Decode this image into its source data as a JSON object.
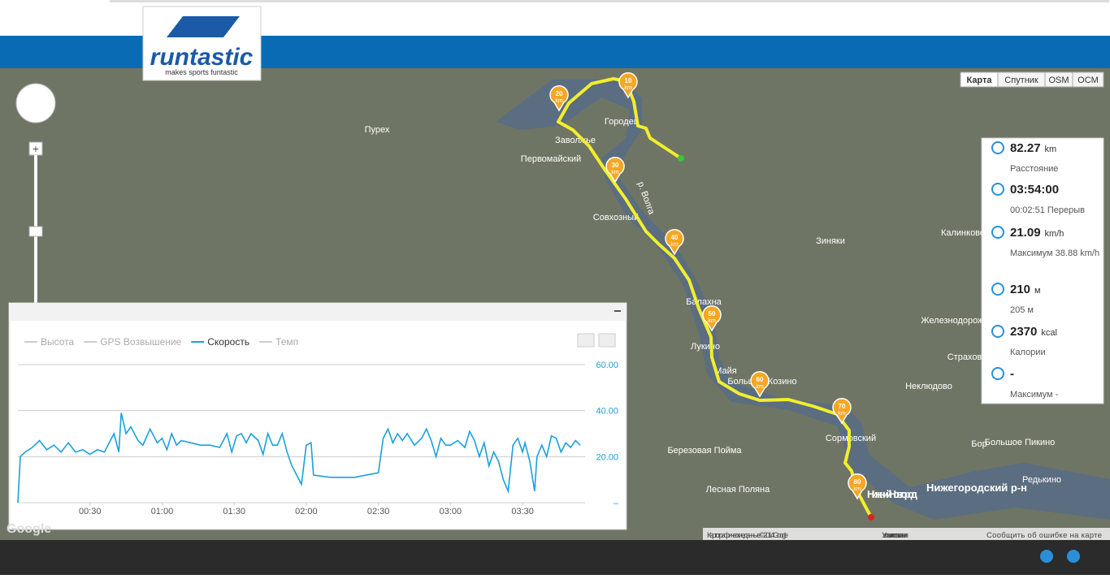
{
  "header": {
    "logo": "runtastic",
    "slogan": "makes sports funtastic"
  },
  "map": {
    "map_types": [
      "Карта",
      "Спутник",
      "OSM",
      "OCM"
    ],
    "labels": [
      "Пурех",
      "Городец",
      "Заволжье",
      "Первомайский",
      "Совхозный",
      "Зиняки",
      "Калинково",
      "Балахна",
      "Лукино",
      "Майя",
      "Большое Козино",
      "Неклюдово",
      "Железнодорожный",
      "Страхово",
      "Сормовский",
      "Бор",
      "Большое Пикино",
      "Березовая Пойма",
      "Лесная Поляна",
      "Нижний Новгород",
      "Нижегородский р-н",
      "Редькино",
      "р. Волга"
    ],
    "km_markers": [
      "10",
      "20",
      "30",
      "40",
      "50",
      "60",
      "70",
      "80"
    ],
    "km_unit": "km",
    "google": "Google",
    "footer": [
      "Картографические данные © 2014 Google",
      "Условия использования",
      "Сообщить об ошибке на карте"
    ]
  },
  "stats": [
    {
      "value": "82.27",
      "unit": "km",
      "sub": "Расстояние"
    },
    {
      "value": "03:54:00",
      "sub": "00:02:51 Перерыв"
    },
    {
      "value": "21.09",
      "unit": "km/h",
      "sub": "Максимум 38.88 km/h"
    },
    {
      "value": "210",
      "unit": "м",
      "sub": "205 м"
    },
    {
      "value": "2370",
      "unit": "kcal",
      "sub": "Калории"
    },
    {
      "value": "-",
      "sub": "Максимум -"
    }
  ],
  "chart_data": {
    "type": "line",
    "inactive_legend": [
      "Высота",
      "GPS Возвышение",
      "Темп"
    ],
    "x": [
      0,
      1,
      3,
      6,
      9,
      12,
      15,
      18,
      21,
      24,
      27,
      30,
      33,
      36,
      38,
      40,
      42,
      43,
      45,
      47,
      50,
      52,
      55,
      58,
      60,
      62,
      64,
      66,
      68,
      72,
      76,
      80,
      84,
      87,
      89,
      91,
      93,
      95,
      97,
      100,
      102,
      104,
      106,
      108,
      110,
      112,
      114,
      116,
      118,
      120,
      122,
      123,
      130,
      140,
      150,
      152,
      154,
      156,
      158,
      160,
      162,
      165,
      168,
      170,
      172,
      174,
      176,
      178,
      180,
      183,
      186,
      188,
      190,
      192,
      194,
      196,
      198,
      200,
      202,
      204,
      206,
      208,
      210,
      211,
      213,
      215,
      216,
      218,
      220,
      222,
      224,
      226,
      228,
      230,
      232,
      234
    ],
    "series": [
      {
        "name": "Скорость",
        "color": "#1aa0dc",
        "values": [
          0,
          20,
          22,
          24,
          27,
          23,
          25,
          22,
          26,
          22,
          23,
          21,
          23,
          22,
          26,
          30,
          22,
          39,
          30,
          33,
          27,
          25,
          32,
          26,
          28,
          23,
          30,
          25,
          27,
          26,
          25,
          25,
          24,
          30,
          22,
          29,
          30,
          26,
          30,
          27,
          21,
          30,
          25,
          25,
          30,
          22,
          16,
          12,
          8,
          25,
          26,
          12,
          11,
          11,
          13,
          28,
          32,
          26,
          30,
          27,
          30,
          25,
          28,
          32,
          27,
          20,
          28,
          25,
          25,
          27,
          24,
          31,
          27,
          20,
          26,
          16,
          22,
          18,
          10,
          5,
          25,
          28,
          22,
          26,
          18,
          5,
          20,
          25,
          20,
          29,
          28,
          22,
          26,
          24,
          27,
          25
        ]
      }
    ],
    "xlim": [
      0,
      236
    ],
    "xticks": [
      {
        "value": 30,
        "label": "00:30"
      },
      {
        "value": 60,
        "label": "01:00"
      },
      {
        "value": 90,
        "label": "01:30"
      },
      {
        "value": 120,
        "label": "02:00"
      },
      {
        "value": 150,
        "label": "02:30"
      },
      {
        "value": 180,
        "label": "03:00"
      },
      {
        "value": 210,
        "label": "03:30"
      }
    ],
    "ylim": [
      0,
      60
    ],
    "yticks": [
      {
        "value": 0,
        "label": "–"
      },
      {
        "value": 20,
        "label": "20.00"
      },
      {
        "value": 40,
        "label": "40.00"
      },
      {
        "value": 60,
        "label": "60.00"
      }
    ],
    "grid": true
  }
}
